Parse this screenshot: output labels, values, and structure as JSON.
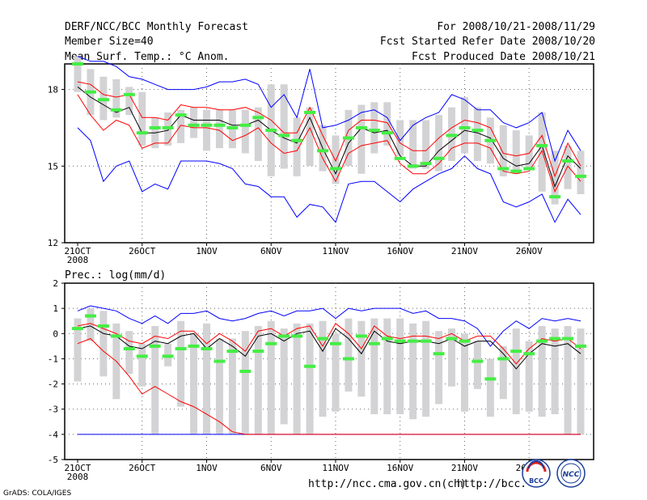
{
  "header": {
    "title": "DERF/NCC/BCC Monthly Forecast",
    "member_size": "Member Size=40",
    "variable": "Mean Surf. Temp.: °C Anom.",
    "period": "For 2008/10/21-2008/11/29",
    "started": "Fcst Started Refer Date 2008/10/20",
    "produced": "Fcst Produced Date 2008/10/21"
  },
  "footer": {
    "url_ncc": "http://ncc.cma.gov.cn(ch)",
    "url_bcc": "http://bcc.",
    "grads": "GrADS: COLA/IGES",
    "logo_bcc": "BCC",
    "logo_ncc": "NCC"
  },
  "colors": {
    "box": "#d3d3d5",
    "mean": "#000000",
    "ci": "#ff0000",
    "range": "#0000ff",
    "median": "#44ee44",
    "grid": "#666666"
  },
  "chart_data": [
    {
      "type": "box-ensemble",
      "title": "Mean Surf. Temp.: °C Anom.",
      "ylim": [
        12,
        19
      ],
      "yticks": [
        12,
        15,
        18
      ],
      "x_tick_labels": [
        "21OCT",
        "26OCT",
        "1NOV",
        "6NOV",
        "11NOV",
        "16NOV",
        "21NOV",
        "26NOV"
      ],
      "x_tick_days": [
        0,
        5,
        10,
        15,
        20,
        25,
        30,
        35
      ],
      "x_sub_label": "2008",
      "n_days": 40,
      "box_low": [
        17.9,
        17.0,
        16.8,
        16.9,
        17.0,
        15.8,
        15.7,
        15.8,
        15.9,
        16.1,
        15.6,
        15.7,
        15.7,
        15.5,
        15.2,
        14.6,
        14.9,
        14.6,
        15.0,
        14.8,
        14.3,
        15.0,
        14.7,
        15.5,
        15.8,
        15.4,
        14.9,
        14.9,
        14.8,
        15.2,
        15.5,
        15.2,
        15.1,
        14.6,
        14.7,
        14.9,
        14.0,
        13.5,
        14.1,
        13.9
      ],
      "box_high": [
        19.3,
        18.8,
        18.5,
        18.4,
        18.1,
        17.9,
        16.9,
        17.1,
        17.2,
        17.3,
        17.2,
        17.2,
        17.2,
        17.2,
        17.3,
        18.2,
        18.2,
        16.9,
        17.3,
        16.6,
        16.2,
        17.2,
        17.4,
        17.5,
        17.5,
        16.8,
        16.8,
        16.8,
        17.0,
        17.3,
        17.7,
        17.3,
        16.9,
        16.6,
        16.4,
        16.2,
        17.1,
        15.6,
        15.8,
        15.6
      ],
      "mean": [
        18.1,
        17.7,
        17.4,
        17.1,
        17.3,
        16.3,
        16.3,
        16.4,
        17.0,
        16.8,
        16.8,
        16.8,
        16.6,
        16.6,
        16.8,
        16.4,
        16.1,
        15.9,
        16.9,
        15.7,
        14.7,
        15.9,
        16.5,
        16.3,
        16.4,
        15.4,
        15.0,
        15.0,
        15.6,
        16.0,
        16.4,
        16.3,
        16.1,
        15.3,
        15.0,
        15.1,
        15.8,
        14.2,
        15.4,
        14.9
      ],
      "ci_upper": [
        18.3,
        18.2,
        17.8,
        17.7,
        17.8,
        16.9,
        16.9,
        16.8,
        17.4,
        17.3,
        17.3,
        17.2,
        17.2,
        17.3,
        17.1,
        16.8,
        16.3,
        16.3,
        17.3,
        16.2,
        15.2,
        16.4,
        16.8,
        16.8,
        16.7,
        15.9,
        15.6,
        15.6,
        16.1,
        16.5,
        16.8,
        16.7,
        16.5,
        15.5,
        15.4,
        15.5,
        16.2,
        14.6,
        15.9,
        15.0
      ],
      "ci_lower": [
        17.8,
        17.0,
        16.4,
        16.8,
        16.6,
        15.7,
        15.9,
        15.9,
        16.6,
        16.5,
        16.5,
        16.4,
        16.0,
        16.2,
        16.5,
        15.9,
        15.5,
        15.6,
        16.5,
        15.3,
        14.4,
        15.5,
        15.8,
        15.9,
        16.0,
        15.1,
        14.7,
        14.7,
        15.1,
        15.7,
        15.9,
        15.9,
        15.7,
        14.8,
        14.7,
        14.8,
        15.6,
        14.0,
        15.0,
        14.4
      ],
      "max": [
        19.3,
        19.1,
        19.1,
        18.9,
        18.5,
        18.4,
        18.2,
        18.0,
        18.0,
        18.0,
        18.1,
        18.3,
        18.3,
        18.4,
        18.2,
        17.3,
        17.8,
        16.9,
        18.8,
        16.5,
        16.6,
        16.8,
        17.1,
        17.2,
        16.9,
        16.0,
        16.6,
        16.9,
        17.1,
        17.8,
        17.6,
        17.2,
        17.2,
        16.7,
        16.5,
        16.7,
        17.1,
        15.2,
        16.4,
        15.6
      ],
      "min": [
        16.5,
        16.0,
        14.4,
        15.0,
        15.2,
        14.0,
        14.3,
        14.1,
        15.2,
        15.2,
        15.2,
        15.1,
        14.9,
        14.3,
        14.2,
        13.8,
        13.8,
        13.0,
        13.5,
        13.4,
        12.8,
        14.3,
        14.4,
        14.4,
        14.0,
        13.6,
        14.1,
        14.4,
        14.7,
        14.9,
        15.4,
        14.9,
        14.7,
        13.6,
        13.4,
        13.6,
        13.9,
        12.8,
        13.7,
        13.1
      ],
      "median": [
        19.0,
        17.9,
        17.6,
        17.2,
        17.8,
        16.3,
        16.5,
        16.5,
        17.0,
        16.6,
        16.6,
        16.6,
        16.5,
        16.6,
        16.9,
        16.4,
        16.2,
        16.0,
        17.1,
        15.6,
        14.9,
        16.1,
        16.5,
        16.4,
        16.3,
        15.3,
        15.0,
        15.1,
        15.3,
        16.2,
        16.5,
        16.4,
        16.0,
        14.9,
        14.8,
        14.9,
        15.8,
        13.8,
        15.2,
        14.6
      ]
    },
    {
      "type": "box-ensemble",
      "title": "Prec.: log(mm/d)",
      "ylim": [
        -5,
        2
      ],
      "yticks": [
        -5,
        -4,
        -3,
        -2,
        -1,
        0,
        1,
        2
      ],
      "x_tick_labels": [
        "21OCT",
        "26OCT",
        "1NOV",
        "6NOV",
        "11NOV",
        "16NOV",
        "21NOV",
        "26NOV"
      ],
      "x_tick_days": [
        0,
        5,
        10,
        15,
        20,
        25,
        30,
        35
      ],
      "x_sub_label": "2008",
      "n_days": 40,
      "box_low": [
        -1.9,
        -0.3,
        -1.7,
        -2.6,
        -1.6,
        -2.1,
        -4.0,
        -1.3,
        -2.9,
        -4.0,
        -4.0,
        -4.0,
        -4.0,
        -4.0,
        -4.0,
        -4.0,
        -3.6,
        -4.0,
        -4.0,
        -3.3,
        -3.1,
        -2.3,
        -2.5,
        -3.2,
        -3.2,
        -3.2,
        -3.4,
        -3.3,
        -2.8,
        -2.1,
        -3.1,
        -2.2,
        -3.3,
        -2.6,
        -3.2,
        -3.1,
        -3.3,
        -3.2,
        -4.0,
        -4.0
      ],
      "box_high": [
        0.6,
        1.0,
        0.9,
        0.4,
        0.1,
        -0.4,
        0.3,
        -0.4,
        0.5,
        0.0,
        0.4,
        -0.2,
        -0.2,
        0.1,
        0.3,
        0.5,
        0.2,
        0.4,
        0.4,
        0.5,
        0.0,
        0.6,
        0.5,
        0.6,
        0.6,
        0.6,
        0.4,
        0.5,
        0.1,
        0.2,
        0.0,
        -0.3,
        -1.0,
        -0.5,
        0.2,
        -0.3,
        0.3,
        0.2,
        0.3,
        0.2
      ],
      "mean": [
        0.2,
        0.3,
        0.0,
        -0.1,
        -0.5,
        -0.6,
        -0.3,
        -0.4,
        -0.1,
        0.0,
        -0.6,
        -0.2,
        -0.5,
        -0.9,
        -0.1,
        0.0,
        -0.3,
        0.0,
        0.1,
        -0.7,
        0.2,
        -0.2,
        -0.8,
        0.1,
        -0.3,
        -0.4,
        -0.3,
        -0.3,
        -0.4,
        -0.2,
        -0.5,
        -0.3,
        -0.3,
        -0.8,
        -1.4,
        -0.8,
        -0.4,
        -0.5,
        -0.4,
        -0.8
      ],
      "ci_upper": [
        0.3,
        0.4,
        0.2,
        0.0,
        -0.3,
        -0.4,
        -0.1,
        -0.2,
        0.1,
        0.1,
        -0.4,
        0.0,
        -0.3,
        -0.7,
        0.1,
        0.2,
        -0.1,
        0.2,
        0.3,
        -0.5,
        0.4,
        0.0,
        -0.6,
        0.3,
        -0.1,
        -0.2,
        -0.1,
        -0.1,
        -0.2,
        0.0,
        -0.3,
        -0.1,
        -0.1,
        -0.6,
        -1.2,
        -0.6,
        -0.2,
        -0.3,
        -0.2,
        -0.6
      ],
      "ci_lower": [
        -0.4,
        -0.2,
        -0.7,
        -1.1,
        -1.7,
        -2.4,
        -2.1,
        -2.4,
        -2.7,
        -2.9,
        -3.2,
        -3.5,
        -3.9,
        -4.0,
        -4.0,
        -4.0,
        -4.0,
        -4.0,
        -4.0,
        -4.0,
        -4.0,
        -4.0,
        -4.0,
        -4.0,
        -4.0,
        -4.0,
        -4.0,
        -4.0,
        -4.0,
        -4.0,
        -4.0,
        -4.0,
        -4.0,
        -4.0,
        -4.0,
        -4.0,
        -4.0,
        -4.0,
        -4.0,
        -4.0
      ],
      "max": [
        0.9,
        1.1,
        1.0,
        0.9,
        0.6,
        0.4,
        0.7,
        0.4,
        0.8,
        0.8,
        0.9,
        0.6,
        0.5,
        0.6,
        0.8,
        0.9,
        0.7,
        0.9,
        0.9,
        1.0,
        0.6,
        1.0,
        0.9,
        1.0,
        1.0,
        1.0,
        0.8,
        0.9,
        0.6,
        0.6,
        0.5,
        0.2,
        -0.5,
        0.1,
        0.5,
        0.2,
        0.6,
        0.5,
        0.6,
        0.5
      ],
      "min": [
        -4.0,
        -4.0,
        -4.0,
        -4.0,
        -4.0,
        -4.0,
        -4.0,
        -4.0,
        -4.0,
        -4.0,
        -4.0,
        -4.0,
        -4.0,
        -4.0,
        -4.0,
        -4.0,
        -4.0,
        -4.0,
        -4.0,
        -4.0,
        -4.0,
        -4.0,
        -4.0,
        -4.0,
        -4.0,
        -4.0,
        -4.0,
        -4.0,
        -4.0,
        -4.0,
        -4.0,
        -4.0,
        -4.0,
        -4.0,
        -4.0,
        -4.0,
        -4.0,
        -4.0,
        -4.0,
        -4.0
      ],
      "median": [
        0.2,
        0.7,
        0.3,
        -0.1,
        -0.6,
        -0.9,
        -0.5,
        -0.9,
        -0.6,
        -0.5,
        -0.6,
        -1.1,
        -0.7,
        -1.5,
        -0.7,
        -0.4,
        -0.1,
        -0.1,
        -1.3,
        -0.2,
        -0.4,
        -1.0,
        -0.1,
        -0.4,
        -0.2,
        -0.3,
        -0.3,
        -0.3,
        -0.8,
        -0.2,
        -0.3,
        -1.1,
        -1.8,
        -1.0,
        -0.7,
        -0.8,
        -0.3,
        -0.2,
        -0.2,
        -0.5
      ]
    }
  ]
}
